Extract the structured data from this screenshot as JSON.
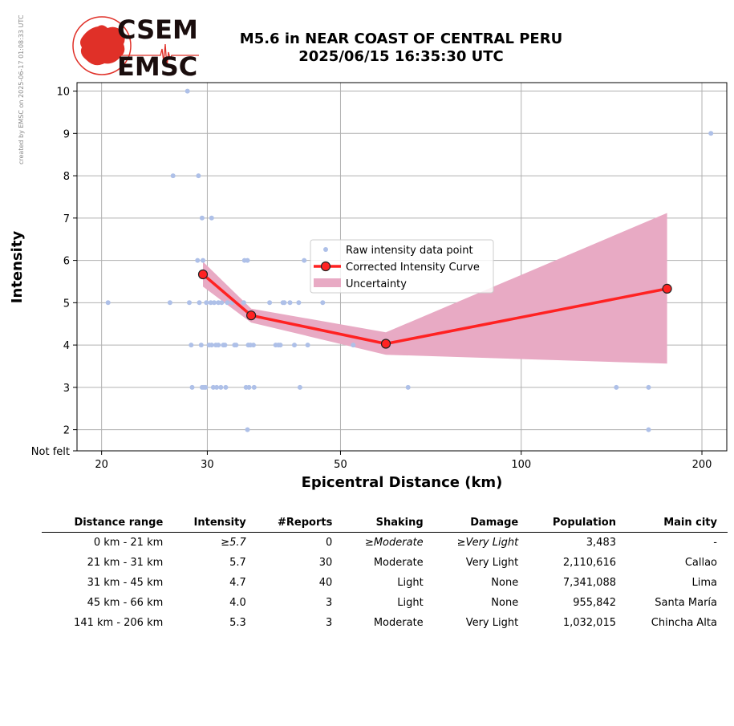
{
  "created_stamp": "created by EMSC on 2025-06-17 01:08:33 UTC",
  "logo": {
    "top": "CSEM",
    "bottom": "EMSC",
    "red": "#e03028",
    "dark": "#1a0d0d"
  },
  "title_line1": "M5.6 in NEAR COAST OF CENTRAL PERU",
  "title_line2": "2025/06/15 16:35:30 UTC",
  "chart_data": {
    "type": "scatter",
    "xlabel": "Epicentral Distance (km)",
    "ylabel": "Intensity",
    "x_scale": "log",
    "xlim": [
      18.2,
      220
    ],
    "ylim": [
      1.5,
      10.2
    ],
    "x_ticks": [
      20,
      30,
      50,
      100,
      200
    ],
    "y_ticks": [
      {
        "value": 1.5,
        "label": "Not felt"
      },
      {
        "value": 2,
        "label": "2"
      },
      {
        "value": 3,
        "label": "3"
      },
      {
        "value": 4,
        "label": "4"
      },
      {
        "value": 5,
        "label": "5"
      },
      {
        "value": 6,
        "label": "6"
      },
      {
        "value": 7,
        "label": "7"
      },
      {
        "value": 8,
        "label": "8"
      },
      {
        "value": 9,
        "label": "9"
      },
      {
        "value": 10,
        "label": "10"
      }
    ],
    "grid": true,
    "legend_position": "center",
    "raw_points": [
      [
        20.5,
        5
      ],
      [
        26,
        5
      ],
      [
        26.3,
        8
      ],
      [
        27.8,
        10
      ],
      [
        28.2,
        4
      ],
      [
        28.3,
        3
      ],
      [
        28,
        5
      ],
      [
        29,
        8
      ],
      [
        28.9,
        6
      ],
      [
        29.1,
        5
      ],
      [
        29.4,
        7
      ],
      [
        29.3,
        4
      ],
      [
        29.4,
        3
      ],
      [
        29.6,
        3
      ],
      [
        29.8,
        3
      ],
      [
        29.5,
        6
      ],
      [
        29.9,
        5
      ],
      [
        30.2,
        4
      ],
      [
        30.4,
        5
      ],
      [
        30.5,
        4
      ],
      [
        30.7,
        3
      ],
      [
        30.5,
        7
      ],
      [
        30.8,
        5
      ],
      [
        31,
        4
      ],
      [
        31.1,
        3
      ],
      [
        31.3,
        5
      ],
      [
        31.3,
        4
      ],
      [
        31.6,
        3
      ],
      [
        31.7,
        5
      ],
      [
        31.9,
        4
      ],
      [
        32.2,
        3
      ],
      [
        32.4,
        5
      ],
      [
        32.1,
        4
      ],
      [
        33,
        5
      ],
      [
        33.3,
        4
      ],
      [
        33.5,
        4
      ],
      [
        34.5,
        5
      ],
      [
        34.6,
        6
      ],
      [
        35,
        6
      ],
      [
        34.8,
        3
      ],
      [
        35.2,
        3
      ],
      [
        35,
        2
      ],
      [
        35.1,
        4
      ],
      [
        35.4,
        4
      ],
      [
        35.8,
        4
      ],
      [
        35.9,
        3
      ],
      [
        38.1,
        5
      ],
      [
        39,
        4
      ],
      [
        39.4,
        4
      ],
      [
        39.7,
        4
      ],
      [
        40.1,
        5
      ],
      [
        40.3,
        5
      ],
      [
        41.2,
        5
      ],
      [
        41.9,
        4
      ],
      [
        42.6,
        5
      ],
      [
        42.8,
        3
      ],
      [
        43.5,
        6
      ],
      [
        44.1,
        4
      ],
      [
        46.7,
        5
      ],
      [
        52.5,
        4
      ],
      [
        64.8,
        3
      ],
      [
        144,
        3
      ],
      [
        163,
        3
      ],
      [
        163,
        2
      ],
      [
        207,
        9
      ]
    ],
    "series": [
      {
        "name": "Corrected Intensity Curve",
        "color": "#ff2222",
        "x": [
          29.5,
          35.5,
          59.5,
          175
        ],
        "y": [
          5.67,
          4.7,
          4.03,
          5.33
        ]
      }
    ],
    "uncertainty": {
      "name": "Uncertainty",
      "color": "#e8aac4",
      "x": [
        29.5,
        35.5,
        59.5,
        175
      ],
      "lower": [
        5.38,
        4.53,
        3.77,
        3.56
      ],
      "upper": [
        5.97,
        4.86,
        4.3,
        7.12
      ]
    },
    "legend": [
      {
        "label": "Raw intensity data point",
        "kind": "point",
        "color": "#aec0e8"
      },
      {
        "label": "Corrected Intensity Curve",
        "kind": "line",
        "color": "#ff2222"
      },
      {
        "label": "Uncertainty",
        "kind": "band",
        "color": "#e8aac4"
      }
    ]
  },
  "table": {
    "headers": [
      "Distance range",
      "Intensity",
      "#Reports",
      "Shaking",
      "Damage",
      "Population",
      "Main city"
    ],
    "rows": [
      {
        "range": "0 km -   21 km",
        "intensity": "≥5.7",
        "reports": "0",
        "shaking": "≥Moderate",
        "damage": "≥Very Light",
        "population": "3,483",
        "city": "-",
        "italic": true
      },
      {
        "range": "21 km -   31 km",
        "intensity": "5.7",
        "reports": "30",
        "shaking": "Moderate",
        "damage": "Very Light",
        "population": "2,110,616",
        "city": "Callao",
        "italic": false
      },
      {
        "range": "31 km -   45 km",
        "intensity": "4.7",
        "reports": "40",
        "shaking": "Light",
        "damage": "None",
        "population": "7,341,088",
        "city": "Lima",
        "italic": false
      },
      {
        "range": "45 km -   66 km",
        "intensity": "4.0",
        "reports": "3",
        "shaking": "Light",
        "damage": "None",
        "population": "955,842",
        "city": "Santa María",
        "italic": false
      },
      {
        "range": "141 km -  206 km",
        "intensity": "5.3",
        "reports": "3",
        "shaking": "Moderate",
        "damage": "Very Light",
        "population": "1,032,015",
        "city": "Chincha Alta",
        "italic": false
      }
    ]
  }
}
